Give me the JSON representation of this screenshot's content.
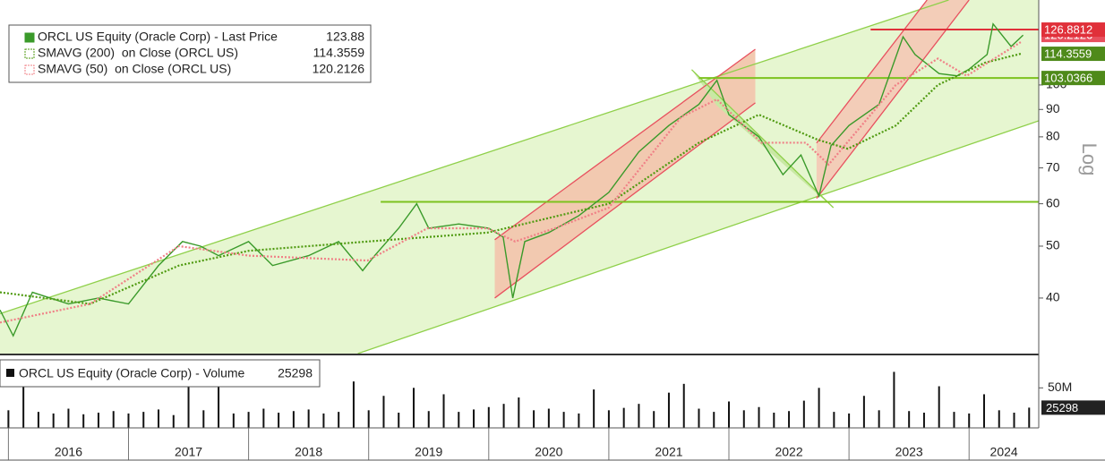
{
  "chart_data": [
    {
      "type": "line",
      "log": true,
      "scale_label": "Log",
      "xlim": [
        2015.93,
        2024.58
      ],
      "ylim": [
        31.5,
        144.1
      ],
      "yticks": [
        40,
        50,
        60,
        70,
        80,
        90,
        100
      ],
      "series": [
        {
          "name": "ORCL US Equity (Oracle Corp) - Last Price",
          "color": "#3a9a2a",
          "dash": "solid",
          "x": [
            2015.93,
            2016.04,
            2016.2,
            2016.5,
            2016.75,
            2017.0,
            2017.25,
            2017.45,
            2017.6,
            2017.75,
            2018.0,
            2018.2,
            2018.5,
            2018.75,
            2018.95,
            2019.05,
            2019.25,
            2019.4,
            2019.5,
            2019.75,
            2020.0,
            2020.12,
            2020.2,
            2020.3,
            2020.5,
            2020.75,
            2021.0,
            2021.25,
            2021.5,
            2021.75,
            2021.9,
            2022.0,
            2022.25,
            2022.45,
            2022.6,
            2022.75,
            2022.85,
            2023.0,
            2023.25,
            2023.45,
            2023.55,
            2023.75,
            2023.9,
            2024.0,
            2024.15,
            2024.2,
            2024.35,
            2024.45
          ],
          "values": [
            38,
            34,
            41,
            39,
            40,
            39,
            46,
            51,
            50,
            48,
            51,
            46,
            48,
            51,
            45,
            48,
            54,
            60,
            54,
            55,
            54,
            52,
            40,
            51,
            53,
            57,
            63,
            75,
            84,
            92,
            102,
            88,
            80,
            68,
            74,
            62,
            77,
            84,
            92,
            123,
            114,
            105,
            104,
            107,
            114,
            130,
            118,
            123.88
          ]
        },
        {
          "name": "SMAVG (200)  on Close (ORCL US)",
          "color": "#4f9a10",
          "dash": "dotted",
          "badge_color": "#4f8a1a",
          "x": [
            2015.93,
            2016.68,
            2017.42,
            2018.0,
            2018.99,
            2019.99,
            2021.0,
            2021.75,
            2022.25,
            2022.74,
            2022.99,
            2023.39,
            2023.74,
            2024.13,
            2024.43
          ],
          "values": [
            41,
            39,
            46,
            49,
            51,
            53,
            60,
            78,
            88,
            79,
            76,
            84,
            100,
            110,
            114.3559
          ]
        },
        {
          "name": "SMAVG (50)  on Close (ORCL US)",
          "color": "#f07f86",
          "dash": "dotted",
          "badge_color": "#e8505e",
          "x": [
            2015.93,
            2016.68,
            2017.42,
            2018.0,
            2018.99,
            2019.49,
            2019.99,
            2020.22,
            2020.55,
            2021.0,
            2021.6,
            2021.9,
            2022.27,
            2022.64,
            2022.83,
            2023.39,
            2023.74,
            2023.98,
            2024.43
          ],
          "values": [
            36,
            39,
            50,
            48,
            47,
            54,
            54,
            51,
            54,
            59,
            87,
            94,
            78,
            78,
            71,
            100,
            112,
            104,
            120.2126
          ]
        }
      ],
      "bands": [
        {
          "color": "#e6f6d0",
          "x": [
            2015.93,
            2023.83,
            2024.58,
            2024.58,
            2018.91,
            2015.93
          ],
          "y": [
            37.4,
            144.1,
            144.1,
            85.7,
            31.5,
            31.5
          ]
        },
        {
          "color": "#f2c9b0",
          "x": [
            2020.05,
            2022.22,
            2022.22,
            2020.05
          ],
          "y": [
            51.4,
            116.6,
            92.6,
            40.0
          ]
        },
        {
          "color": "#f3cdb8",
          "x": [
            2022.73,
            2024.0,
            2023.65,
            2022.73
          ],
          "y": [
            61.4,
            144.1,
            144.1,
            77.9
          ]
        },
        {
          "color": "#c9e8a4",
          "x": [
            2021.69,
            2022.87,
            2022.72,
            2021.9
          ],
          "y": [
            106.8,
            59.0,
            63.0,
            91.5
          ]
        }
      ],
      "trend_lines": [
        {
          "color": "#8fd04a",
          "x": [
            2015.93,
            2023.83
          ],
          "y": [
            37.4,
            144.1
          ]
        },
        {
          "color": "#8fd04a",
          "x": [
            2018.91,
            2024.58
          ],
          "y": [
            31.5,
            85.7
          ]
        },
        {
          "color": "#e8505e",
          "x": [
            2020.05,
            2022.22
          ],
          "y": [
            51.4,
            116.6
          ]
        },
        {
          "color": "#e8505e",
          "x": [
            2020.05,
            2022.22
          ],
          "y": [
            40.0,
            92.6
          ]
        },
        {
          "color": "#e8505e",
          "x": [
            2022.73,
            2024.0
          ],
          "y": [
            61.4,
            144.1
          ]
        },
        {
          "color": "#e8505e",
          "x": [
            2022.73,
            2023.65
          ],
          "y": [
            77.9,
            144.1
          ]
        },
        {
          "color": "#8fd04a",
          "x": [
            2021.69,
            2022.87
          ],
          "y": [
            106.8,
            59.0
          ]
        }
      ],
      "levels": [
        {
          "value": 60.5,
          "from": 2019.1,
          "color": "#7cc21e"
        },
        {
          "value": 103.0366,
          "from": 2021.75,
          "color": "#7cc21e",
          "badge_color": "#4f8a1a"
        },
        {
          "value": 126.8812,
          "from": 2023.18,
          "color": "#e0303a",
          "badge_color": "#e0303a"
        }
      ]
    },
    {
      "type": "bar",
      "name": "ORCL US Equity (Oracle Corp) - Volume",
      "color": "#111111",
      "xlim": [
        2015.93,
        2024.58
      ],
      "ylim": [
        0,
        85000
      ],
      "yticks": [
        {
          "value": 50000,
          "label": "50M"
        }
      ],
      "xticks": [
        2016,
        2017,
        2018,
        2019,
        2020,
        2021,
        2022,
        2023,
        2024
      ],
      "x": [
        2016.0,
        2016.125,
        2016.25,
        2016.375,
        2016.5,
        2016.625,
        2016.75,
        2016.875,
        2017.0,
        2017.125,
        2017.25,
        2017.375,
        2017.5,
        2017.625,
        2017.75,
        2017.875,
        2018.0,
        2018.125,
        2018.25,
        2018.375,
        2018.5,
        2018.625,
        2018.75,
        2018.875,
        2019.0,
        2019.125,
        2019.25,
        2019.375,
        2019.5,
        2019.625,
        2019.75,
        2019.875,
        2020.0,
        2020.125,
        2020.25,
        2020.375,
        2020.5,
        2020.625,
        2020.75,
        2020.875,
        2021.0,
        2021.125,
        2021.25,
        2021.375,
        2021.5,
        2021.625,
        2021.75,
        2021.875,
        2022.0,
        2022.125,
        2022.25,
        2022.375,
        2022.5,
        2022.625,
        2022.75,
        2022.875,
        2023.0,
        2023.125,
        2023.25,
        2023.375,
        2023.5,
        2023.625,
        2023.75,
        2023.875,
        2024.0,
        2024.125,
        2024.25,
        2024.375,
        2024.5
      ],
      "values": [
        22000,
        60000,
        20000,
        18000,
        24000,
        17000,
        19000,
        21000,
        18000,
        20000,
        23000,
        16000,
        60000,
        22000,
        52000,
        18000,
        20000,
        24000,
        19000,
        21000,
        23000,
        18000,
        20000,
        58000,
        22000,
        40000,
        19000,
        50000,
        21000,
        42000,
        20000,
        23000,
        26000,
        30000,
        38000,
        22000,
        24000,
        20000,
        18000,
        48000,
        22000,
        25000,
        30000,
        21000,
        44000,
        55000,
        24000,
        20000,
        33000,
        22000,
        26000,
        19000,
        21000,
        34000,
        50000,
        20000,
        18000,
        40000,
        22000,
        70000,
        21000,
        19000,
        52000,
        20000,
        18000,
        42000,
        22000,
        19000,
        25298
      ]
    }
  ]
}
